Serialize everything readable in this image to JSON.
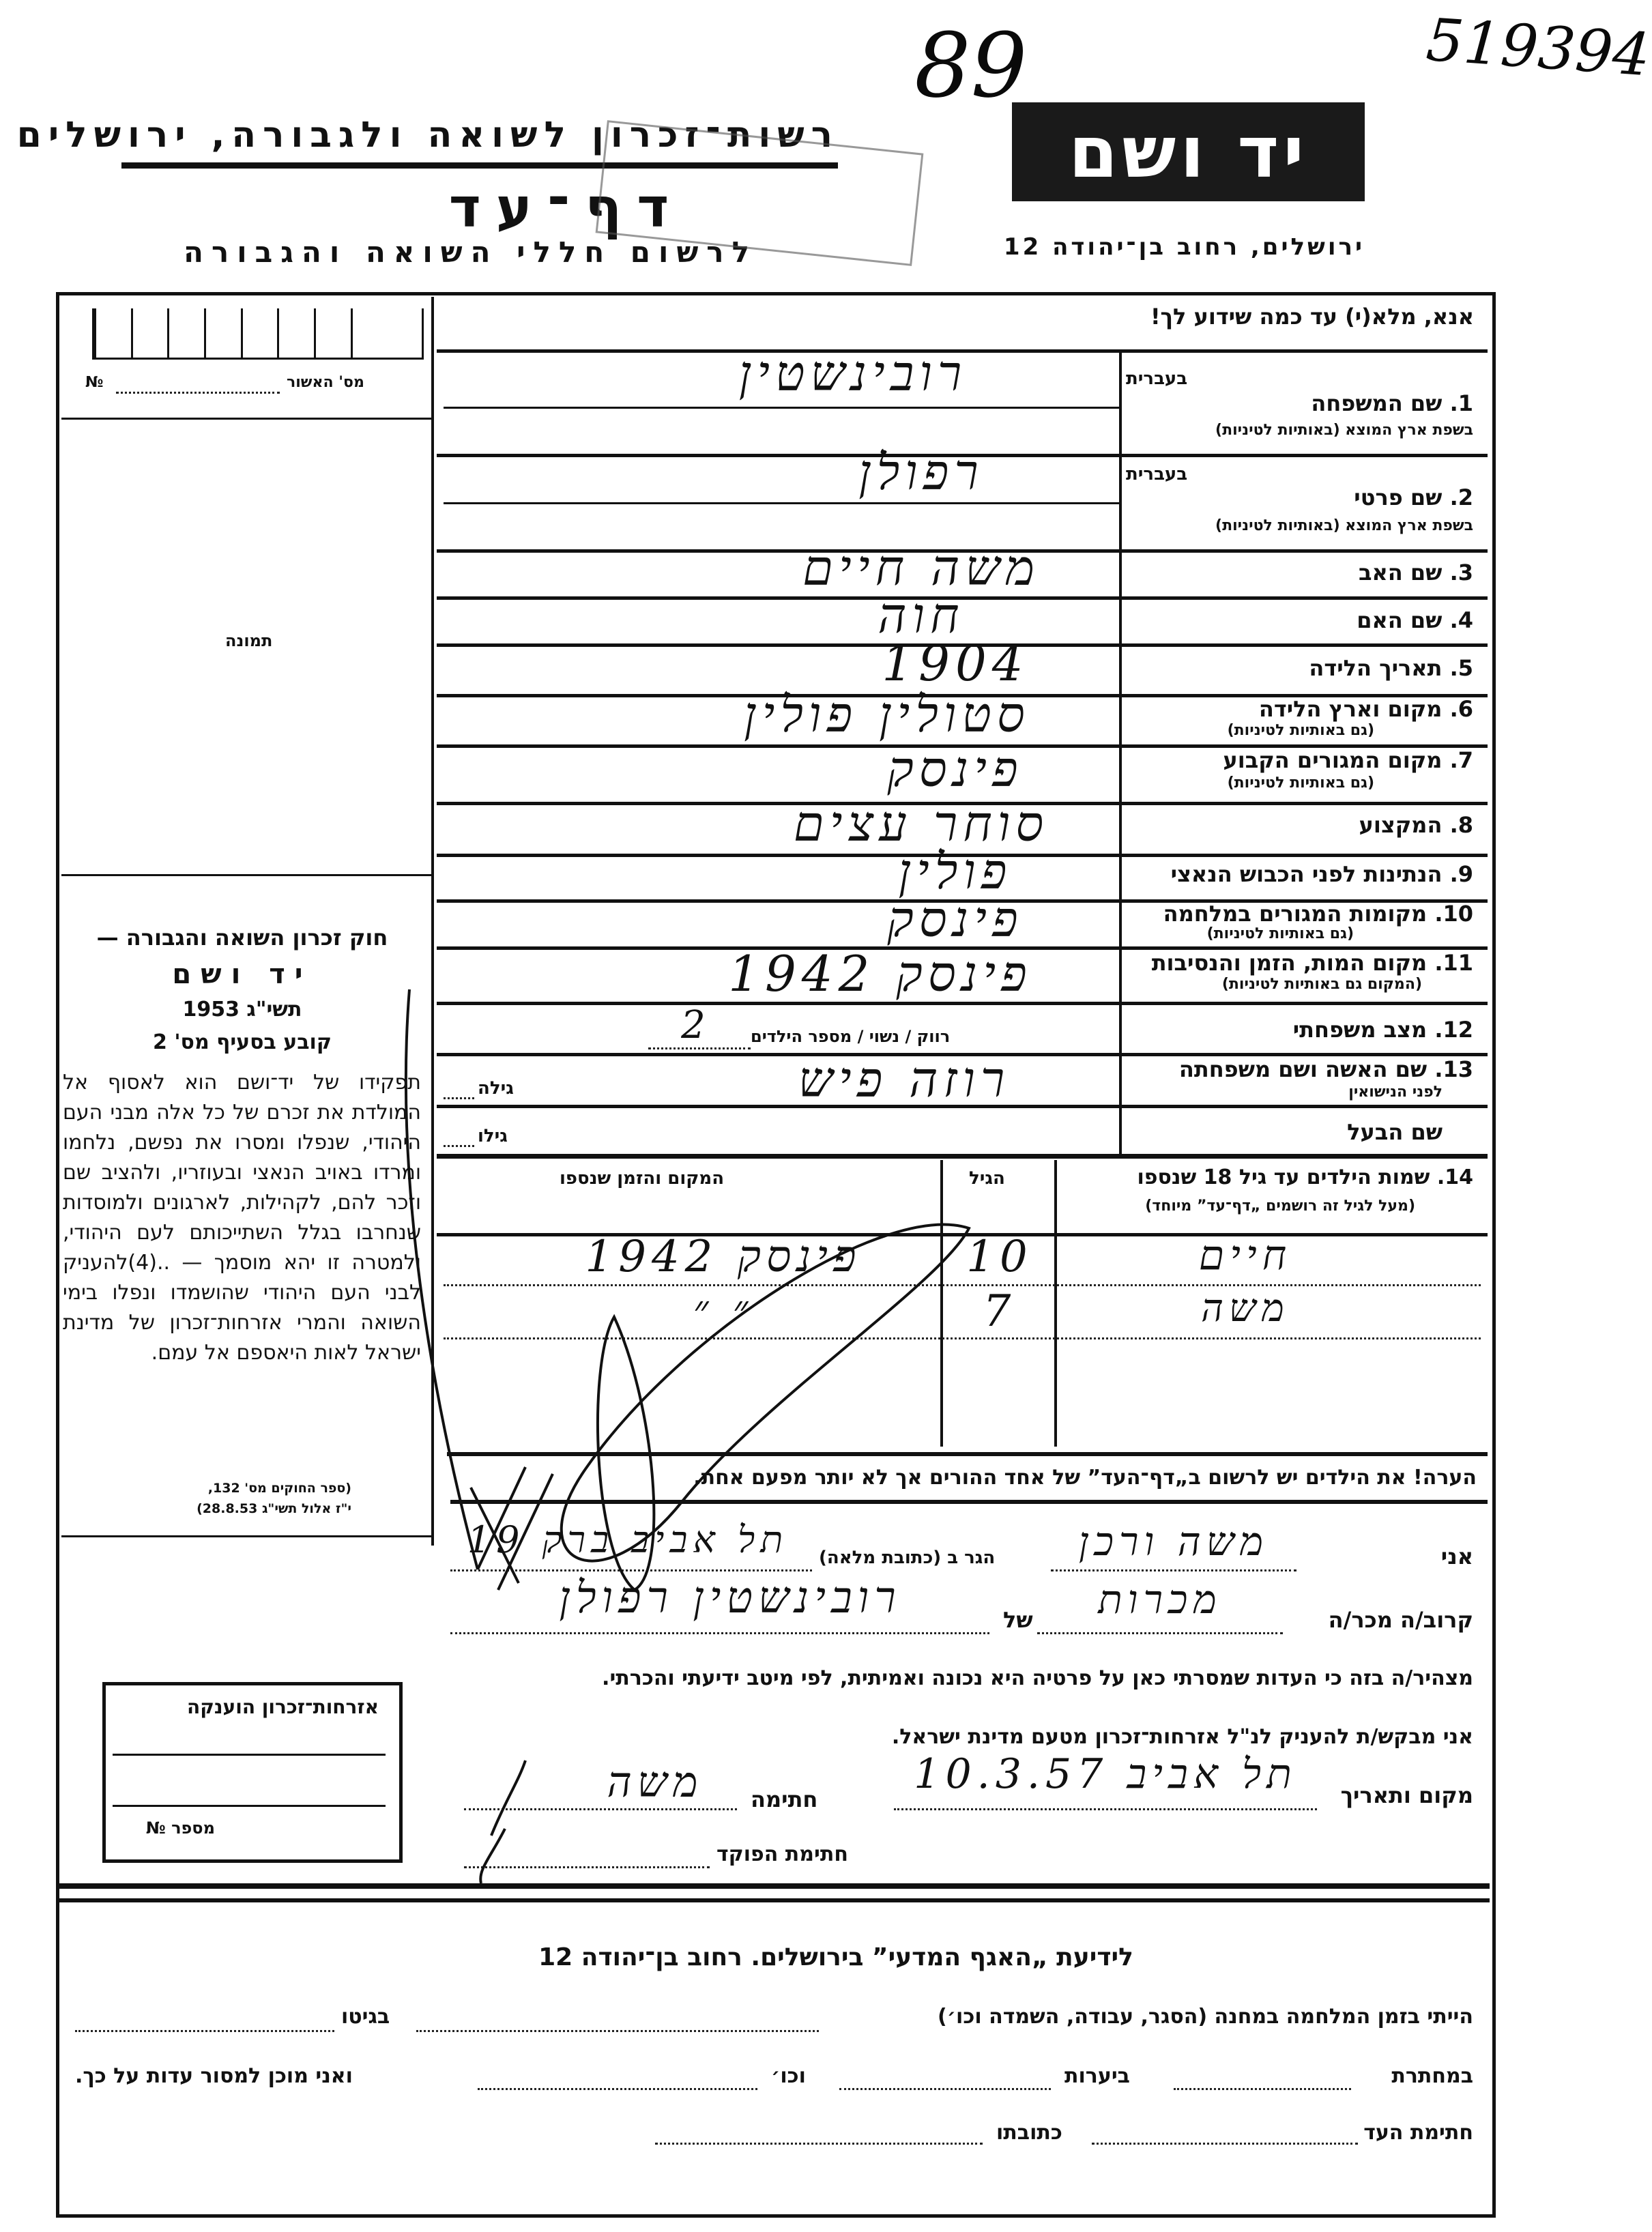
{
  "annotations": {
    "top_number": "89",
    "archive_number": "519394"
  },
  "header": {
    "org_line": "רשות־זכרון לשואה ולגבורה, ירושלים",
    "title": "דף־עד",
    "subtitle": "לרשום חללי השואה והגבורה",
    "logo_text": "יד ושם",
    "address": "ירושלים, רחוב בן־יהודה 12"
  },
  "form": {
    "instruction": "אנא, מלא(י) עד כמה שידוע לך!",
    "hebrew_label": "בעברית",
    "latin_label": "בשפת ארץ המוצא (באותיות לטיניות)",
    "fields": [
      {
        "number": "1.",
        "label": "שם המשפחה",
        "value": "רובינשטין"
      },
      {
        "number": "2.",
        "label": "שם פרטי",
        "value": "רפולן"
      },
      {
        "number": "3.",
        "label": "שם האב",
        "value": "משה חיים"
      },
      {
        "number": "4.",
        "label": "שם האם",
        "value": "חוה"
      },
      {
        "number": "5.",
        "label": "תאריך הלידה",
        "value": "1904"
      },
      {
        "number": "6.",
        "label": "מקום וארץ הלידה",
        "sublabel": "(גם באותיות לטיניות)",
        "value": "סטולין פולין"
      },
      {
        "number": "7.",
        "label": "מקום המגורים הקבוע",
        "sublabel": "(גם באותיות לטיניות)",
        "value": "פינסק"
      },
      {
        "number": "8.",
        "label": "המקצוע",
        "value": "סוחר עצים"
      },
      {
        "number": "9.",
        "label": "הנתינות לפני הכבוש הנאצי",
        "value": "פולין"
      },
      {
        "number": "10.",
        "label": "מקומות המגורים במלחמה",
        "sublabel": "(גם באותיות לטיניות)",
        "value": "פינסק"
      },
      {
        "number": "11.",
        "label": "מקום המות, הזמן והנסיבות",
        "sublabel": "(המקום גם באותיות לטיניות)",
        "value": "פינסק 1942"
      },
      {
        "number": "12.",
        "label": "מצב משפחתי",
        "options": "רווק / נשוי / מספר הילדים",
        "value": "2"
      },
      {
        "number": "13.",
        "label": "שם האשה ושם משפחתה",
        "sublabel": "לפני הנישואין",
        "age_label": "גילה",
        "value": "רוזה פיש"
      },
      {
        "number": "",
        "label": "שם הבעל",
        "age_label": "גילו",
        "value": ""
      }
    ],
    "children": {
      "number": "14.",
      "label": "שמות הילדים עד גיל 18 שנספו",
      "sublabel": "(מעל לגיל זה רושמים „דף־עד” מיוחד)",
      "age_header": "הגיל",
      "place_header": "המקום והזמן שנספו",
      "rows": [
        {
          "name": "חיים",
          "age": "10",
          "place": "פינסק 1942"
        },
        {
          "name": "משה",
          "age": "7",
          "place": "״ ״"
        }
      ]
    },
    "note": "הערה!  את הילדים יש לרשום ב„דף־העד” של אחד ההורים אך לא יותר מפעם אחת."
  },
  "left_column": {
    "approval_label": "מס' האשור",
    "number_sign": "№",
    "photo_label": "תמונה",
    "law_title": "חוק זכרון השואה והגבורה —",
    "law_name": "יד ושם",
    "law_year": "תשי\"ג 1953",
    "law_section": "קובע בסעיף מס' 2",
    "law_body": "תפקידו של יד־ושם הוא לאסוף אל המולדת את זכרם של כל אלה מבני העם היהודי, שנפלו ומסרו את נפשם, נלחמו ומרדו באויב הנאצי ובעוזריו, ולהציב שם וזכר להם, לקהילות, לארגונים ולמוסדות שנחרבו בגלל השתייכותם לעם היהודי, ולמטרה זו יהא מוסמך — ..(4)להעניק לבני העם היהודי שהושמדו ונפלו בימי השואה והמרי אזרחות־זכרון של מדינת ישראל לאות היאספם אל עמם.",
    "citation_1": "(ספר החוקים מס' 132,",
    "citation_2": "י\"ז אלול תשי\"ג 28.8.53)"
  },
  "declaration": {
    "i_label": "אני",
    "i_value": "משה ורכן",
    "address_label": "הגר ב (כתובת מלאה)",
    "address_value": "תל אביב ברק 19",
    "relation_label": "קרוב/ה מכר/ה",
    "relation_value": "מכרות",
    "of_label": "של",
    "of_value": "רובינשטין רפולן",
    "statement": "מצהיר/ה בזה כי העדות שמסרתי כאן על פרטיה היא נכונה ואמיתית, לפי מיטב ידיעתי והכרתי.",
    "request": "אני מבקש/ת להעניק לנ\"ל אזרחות־זכרון מטעם מדינת ישראל.",
    "place_date_label": "מקום ותאריך",
    "place_date_value": "תל אביב 10.3.57",
    "signature_label": "חתימה",
    "signature_value": "משה",
    "officer_label": "חתימת הפוקד"
  },
  "citizenship_box": {
    "title": "אזרחות־זכרון הוענקה",
    "number_label": "מספר №"
  },
  "bottom": {
    "title": "לידיעת „האגף המדעי” בירושלים. רחוב בן־יהודה 12",
    "line1_a": "הייתי בזמן המלחמה במחנה (הסגר, עבודה, השמדה וכו׳)",
    "line1_b": "בגיטו",
    "line2_a": "במחתרת",
    "line2_b": "ביערות",
    "line2_c": "וכו׳",
    "line2_d": "ואני מוכן למסור עדות על כך.",
    "line3_a": "חתימת העד",
    "line3_b": "כתובתו"
  }
}
